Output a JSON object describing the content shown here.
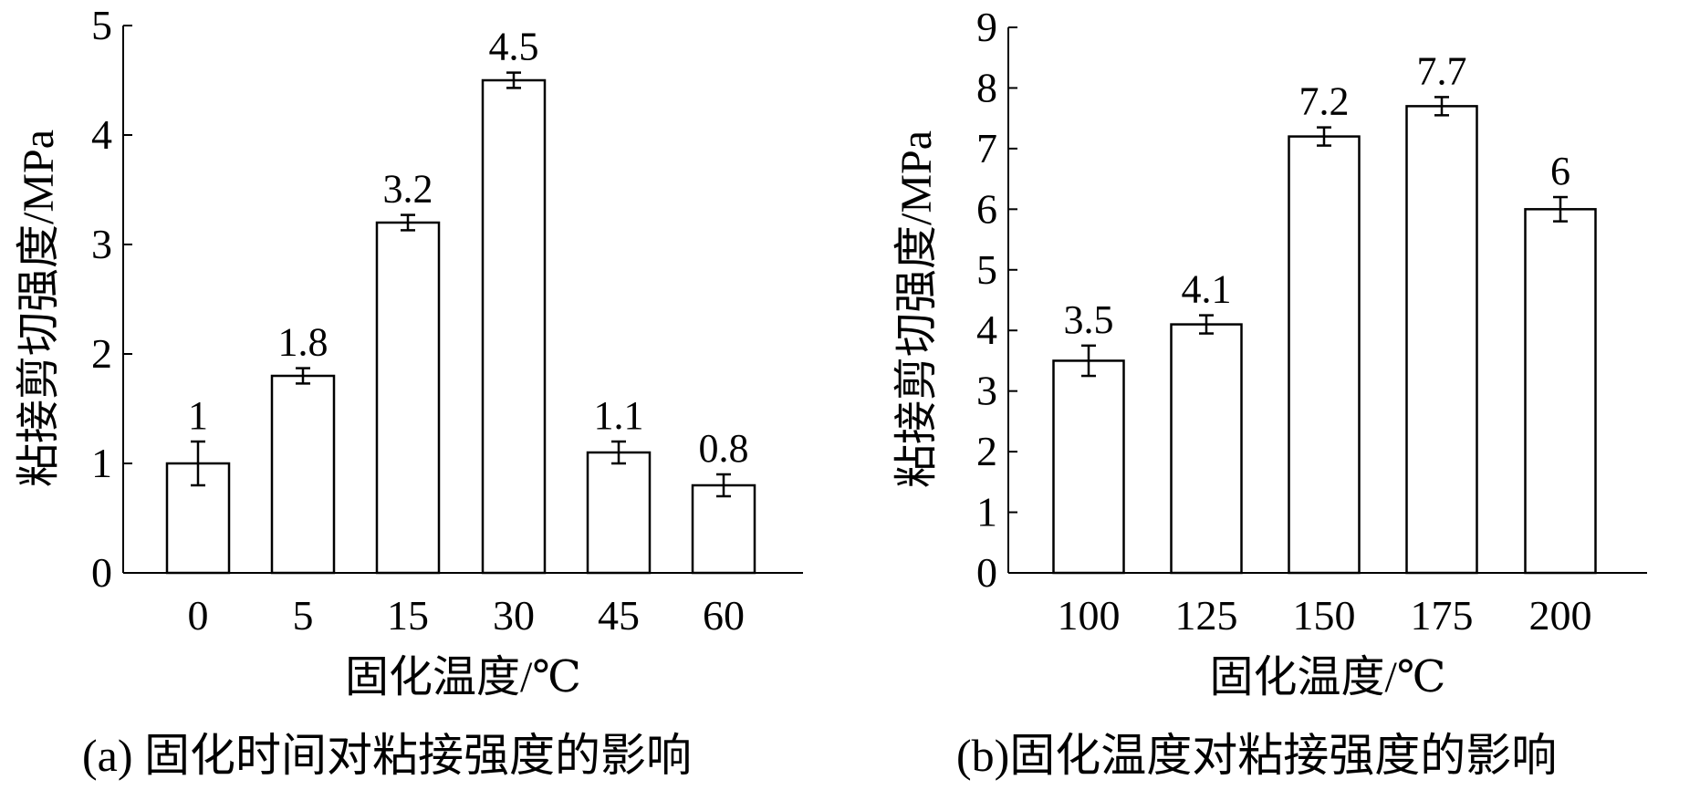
{
  "chart_data": [
    {
      "type": "bar",
      "categories": [
        "0",
        "5",
        "15",
        "30",
        "45",
        "60"
      ],
      "values": [
        1,
        1.8,
        3.2,
        4.5,
        1.1,
        0.8
      ],
      "errors": [
        0.2,
        0.07,
        0.07,
        0.07,
        0.1,
        0.1
      ],
      "value_labels": [
        "1",
        "1.8",
        "3.2",
        "4.5",
        "1.1",
        "0.8"
      ],
      "xlabel": "固化温度/℃",
      "ylabel": "粘接剪切强度/MPa",
      "ylim": [
        0,
        5
      ],
      "yticks": [
        "0",
        "1",
        "2",
        "3",
        "4",
        "5"
      ],
      "caption": "(a) 固化时间对粘接强度的影响",
      "grid": false
    },
    {
      "type": "bar",
      "categories": [
        "100",
        "125",
        "150",
        "175",
        "200"
      ],
      "values": [
        3.5,
        4.1,
        7.2,
        7.7,
        6
      ],
      "errors": [
        0.25,
        0.15,
        0.15,
        0.15,
        0.2
      ],
      "value_labels": [
        "3.5",
        "4.1",
        "7.2",
        "7.7",
        "6"
      ],
      "xlabel": "固化温度/℃",
      "ylabel": "粘接剪切强度/MPa",
      "ylim": [
        0,
        9
      ],
      "yticks": [
        "0",
        "1",
        "2",
        "3",
        "4",
        "5",
        "6",
        "7",
        "8",
        "9"
      ],
      "caption": "(b)固化温度对粘接强度的影响",
      "grid": false
    }
  ]
}
